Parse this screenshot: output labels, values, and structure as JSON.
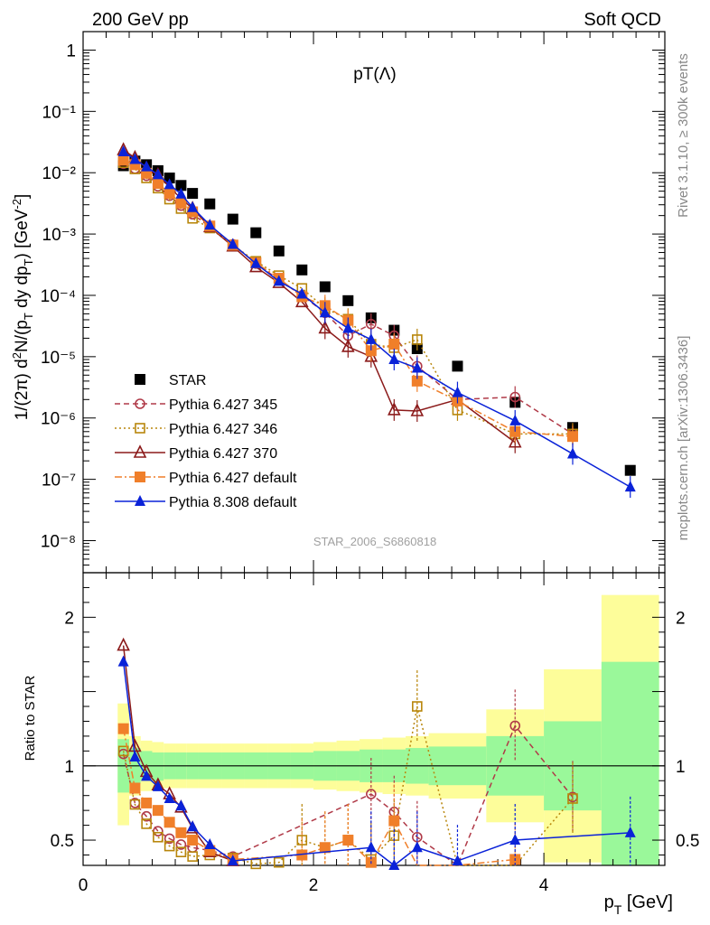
{
  "header": {
    "left": "200 GeV pp",
    "right": "Soft QCD"
  },
  "side_labels": {
    "upper": "Rivet 3.1.10, ≥ 300k events",
    "lower": "mcplots.cern.ch [arXiv:1306.3436]"
  },
  "chart_data": {
    "type": "scatter",
    "title": "pT(Λ)",
    "watermark": "STAR_2006_S6860818",
    "xlabel": "p_T [GeV]",
    "xlim": [
      0,
      5.05
    ],
    "x_ticks": [
      "0",
      "2",
      "4"
    ],
    "main_panel": {
      "ylabel": "1/(2π) d²N/(p_T dy dp_T) [GeV⁻²]",
      "yscale": "log",
      "ylim": [
        3e-09,
        2
      ],
      "y_ticks": [
        "10⁻⁸",
        "10⁻⁷",
        "10⁻⁶",
        "10⁻⁵",
        "10⁻⁴",
        "10⁻³",
        "10⁻²",
        "10⁻¹",
        "1"
      ],
      "legend_position": "lower-left",
      "series": [
        {
          "name": "STAR",
          "color": "#000000",
          "marker": "square-filled",
          "line": "none",
          "x": [
            0.35,
            0.45,
            0.55,
            0.65,
            0.75,
            0.85,
            0.95,
            1.1,
            1.3,
            1.5,
            1.7,
            1.9,
            2.1,
            2.3,
            2.5,
            2.7,
            2.9,
            3.25,
            3.75,
            4.25,
            4.75
          ],
          "y": [
            0.013,
            0.0155,
            0.0135,
            0.0108,
            0.0082,
            0.0062,
            0.0046,
            0.0031,
            0.00175,
            0.00105,
            0.00053,
            0.00026,
            0.000138,
            8.2e-05,
            4.3e-05,
            2.7e-05,
            1.35e-05,
            7e-06,
            1.8e-06,
            7e-07,
            1.4e-07
          ]
        },
        {
          "name": "Pythia 6.427 345",
          "color": "#b03a48",
          "marker": "circle-open",
          "line": "dashed",
          "x": [
            0.35,
            0.45,
            0.55,
            0.65,
            0.75,
            0.85,
            0.95,
            1.1,
            1.3,
            1.5,
            1.7,
            1.9,
            2.1,
            2.3,
            2.5,
            2.7,
            2.9,
            3.25,
            3.75,
            4.25
          ],
          "y": [
            0.014,
            0.0116,
            0.0089,
            0.006,
            0.0042,
            0.0029,
            0.0021,
            0.00132,
            0.00068,
            0.00033,
            0.00018,
            0.0001,
            5.2e-05,
            2.2e-05,
            3.4e-05,
            2.2e-05,
            7e-06,
            2e-06,
            2.2e-06,
            5.5e-07
          ]
        },
        {
          "name": "Pythia 6.427 346",
          "color": "#b8860b",
          "marker": "square-open",
          "line": "dotted",
          "x": [
            0.35,
            0.45,
            0.55,
            0.65,
            0.75,
            0.85,
            0.95,
            1.1,
            1.3,
            1.5,
            1.7,
            1.9,
            2.1,
            2.3,
            2.5,
            2.7,
            2.9,
            3.25,
            3.75,
            4.25
          ],
          "y": [
            0.0145,
            0.0115,
            0.0082,
            0.0056,
            0.0037,
            0.0026,
            0.0018,
            0.00125,
            0.00066,
            0.00036,
            0.00021,
            0.00013,
            6.2e-05,
            4.1e-05,
            1.6e-05,
            1.4e-05,
            1.9e-05,
            1.35e-06,
            5.5e-07,
            5.5e-07
          ]
        },
        {
          "name": "Pythia 6.427 370",
          "color": "#8b1a1a",
          "marker": "triangle-open",
          "line": "solid",
          "x": [
            0.35,
            0.45,
            0.55,
            0.65,
            0.75,
            0.85,
            0.95,
            1.1,
            1.3,
            1.5,
            1.7,
            1.9,
            2.1,
            2.3,
            2.5,
            2.7,
            2.9,
            3.25,
            3.75
          ],
          "y": [
            0.0235,
            0.0175,
            0.0118,
            0.0092,
            0.0058,
            0.0038,
            0.0026,
            0.0013,
            0.00063,
            0.00029,
            0.00016,
            7.8e-05,
            2.9e-05,
            1.45e-05,
            1e-05,
            1.35e-06,
            1.3e-06,
            2e-06,
            4e-07
          ]
        },
        {
          "name": "Pythia 6.427 default",
          "color": "#f07f2a",
          "marker": "square-filled",
          "line": "dashdot",
          "x": [
            0.35,
            0.45,
            0.55,
            0.65,
            0.75,
            0.85,
            0.95,
            1.1,
            1.3,
            1.5,
            1.7,
            1.9,
            2.1,
            2.3,
            2.5,
            2.7,
            2.9,
            3.25,
            3.75,
            4.25
          ],
          "y": [
            0.016,
            0.0135,
            0.0098,
            0.0067,
            0.0046,
            0.0032,
            0.0023,
            0.00135,
            0.00066,
            0.00034,
            0.00019,
            9.5e-05,
            6.8e-05,
            3.9e-05,
            1.25e-05,
            1.6e-05,
            4e-06,
            1.9e-06,
            6e-07,
            5e-07
          ]
        },
        {
          "name": "Pythia 8.308 default",
          "color": "#0a22d8",
          "marker": "triangle-filled",
          "line": "solid",
          "x": [
            0.35,
            0.45,
            0.55,
            0.65,
            0.75,
            0.85,
            0.95,
            1.1,
            1.3,
            1.5,
            1.7,
            1.9,
            2.1,
            2.3,
            2.5,
            2.7,
            2.9,
            3.25,
            3.75,
            4.25,
            4.75
          ],
          "y": [
            0.022,
            0.0165,
            0.0125,
            0.0093,
            0.0064,
            0.0045,
            0.0027,
            0.0014,
            0.00068,
            0.00033,
            0.00017,
            0.000105,
            5.2e-05,
            2.9e-05,
            1.9e-05,
            9e-06,
            6.5e-06,
            2.6e-06,
            9e-07,
            2.6e-07,
            7.5e-08
          ]
        }
      ]
    },
    "ratio_panel": {
      "ylabel": "Ratio to STAR",
      "ylim": [
        0.33,
        2.3
      ],
      "y_ticks": [
        "0.5",
        "1",
        "2"
      ],
      "reference_line": 1,
      "bands": [
        {
          "x0": 0.3,
          "x1": 0.4,
          "inner": [
            0.82,
            1.18
          ],
          "outer": [
            0.6,
            1.42
          ]
        },
        {
          "x0": 0.4,
          "x1": 0.5,
          "inner": [
            0.88,
            1.12
          ],
          "outer": [
            0.8,
            1.2
          ]
        },
        {
          "x0": 0.5,
          "x1": 0.6,
          "inner": [
            0.9,
            1.1
          ],
          "outer": [
            0.83,
            1.17
          ]
        },
        {
          "x0": 0.6,
          "x1": 0.7,
          "inner": [
            0.9,
            1.09
          ],
          "outer": [
            0.84,
            1.16
          ]
        },
        {
          "x0": 0.7,
          "x1": 0.8,
          "inner": [
            0.91,
            1.09
          ],
          "outer": [
            0.85,
            1.15
          ]
        },
        {
          "x0": 0.8,
          "x1": 0.9,
          "inner": [
            0.91,
            1.09
          ],
          "outer": [
            0.85,
            1.15
          ]
        },
        {
          "x0": 0.9,
          "x1": 1.0,
          "inner": [
            0.91,
            1.09
          ],
          "outer": [
            0.85,
            1.15
          ]
        },
        {
          "x0": 1.0,
          "x1": 1.2,
          "inner": [
            0.91,
            1.09
          ],
          "outer": [
            0.85,
            1.15
          ]
        },
        {
          "x0": 1.2,
          "x1": 1.4,
          "inner": [
            0.91,
            1.09
          ],
          "outer": [
            0.85,
            1.15
          ]
        },
        {
          "x0": 1.4,
          "x1": 1.6,
          "inner": [
            0.91,
            1.09
          ],
          "outer": [
            0.85,
            1.15
          ]
        },
        {
          "x0": 1.6,
          "x1": 1.8,
          "inner": [
            0.91,
            1.09
          ],
          "outer": [
            0.85,
            1.15
          ]
        },
        {
          "x0": 1.8,
          "x1": 2.0,
          "inner": [
            0.91,
            1.09
          ],
          "outer": [
            0.85,
            1.15
          ]
        },
        {
          "x0": 2.0,
          "x1": 2.2,
          "inner": [
            0.9,
            1.1
          ],
          "outer": [
            0.84,
            1.16
          ]
        },
        {
          "x0": 2.2,
          "x1": 2.4,
          "inner": [
            0.9,
            1.1
          ],
          "outer": [
            0.83,
            1.17
          ]
        },
        {
          "x0": 2.4,
          "x1": 2.6,
          "inner": [
            0.89,
            1.11
          ],
          "outer": [
            0.82,
            1.18
          ]
        },
        {
          "x0": 2.6,
          "x1": 2.8,
          "inner": [
            0.89,
            1.11
          ],
          "outer": [
            0.81,
            1.19
          ]
        },
        {
          "x0": 2.8,
          "x1": 3.0,
          "inner": [
            0.88,
            1.12
          ],
          "outer": [
            0.8,
            1.2
          ]
        },
        {
          "x0": 3.0,
          "x1": 3.5,
          "inner": [
            0.87,
            1.13
          ],
          "outer": [
            0.78,
            1.22
          ]
        },
        {
          "x0": 3.5,
          "x1": 4.0,
          "inner": [
            0.8,
            1.2
          ],
          "outer": [
            0.62,
            1.38
          ]
        },
        {
          "x0": 4.0,
          "x1": 4.5,
          "inner": [
            0.7,
            1.3
          ],
          "outer": [
            0.35,
            1.65
          ]
        },
        {
          "x0": 4.5,
          "x1": 5.0,
          "inner": [
            0.33,
            1.7
          ],
          "outer": [
            0.33,
            2.15
          ]
        }
      ],
      "series": [
        {
          "name": "Pythia 6.427 345",
          "x": [
            0.35,
            0.45,
            0.55,
            0.65,
            0.75,
            0.85,
            0.95,
            1.1,
            1.3,
            2.5,
            2.7,
            2.9,
            3.25,
            3.75,
            4.25
          ],
          "y": [
            1.08,
            0.75,
            0.66,
            0.56,
            0.51,
            0.47,
            0.45,
            0.43,
            0.39,
            0.81,
            0.69,
            0.52,
            0.3,
            1.27,
            0.79
          ]
        },
        {
          "name": "Pythia 6.427 346",
          "x": [
            0.35,
            0.45,
            0.55,
            0.65,
            0.75,
            0.85,
            0.95,
            1.1,
            1.3,
            1.5,
            1.7,
            1.9,
            2.1,
            2.3,
            2.5,
            2.7,
            2.9,
            3.25,
            3.75,
            4.25
          ],
          "y": [
            1.1,
            0.74,
            0.61,
            0.52,
            0.46,
            0.42,
            0.39,
            0.4,
            0.38,
            0.34,
            0.35,
            0.5,
            0.45,
            0.5,
            0.37,
            0.53,
            1.4,
            0.2,
            0.3,
            0.78
          ]
        },
        {
          "name": "Pythia 6.427 370",
          "x": [
            0.35,
            0.45,
            0.55,
            0.65,
            0.75,
            0.85,
            0.95,
            1.1,
            1.3
          ],
          "y": [
            1.81,
            1.13,
            0.96,
            0.87,
            0.81,
            0.72,
            0.58,
            0.42,
            0.36
          ]
        },
        {
          "name": "Pythia 6.427 default",
          "x": [
            0.35,
            0.45,
            0.55,
            0.65,
            0.75,
            0.85,
            0.95,
            1.1,
            1.3,
            1.9,
            2.1,
            2.3,
            2.5,
            2.7,
            2.9,
            3.25,
            3.75
          ],
          "y": [
            1.25,
            0.85,
            0.75,
            0.7,
            0.62,
            0.55,
            0.5,
            0.43,
            0.37,
            0.4,
            0.45,
            0.5,
            0.35,
            0.63,
            0.3,
            0.3,
            0.37
          ]
        },
        {
          "name": "Pythia 8.308 default",
          "x": [
            0.35,
            0.45,
            0.55,
            0.65,
            0.75,
            0.85,
            0.95,
            1.1,
            1.3,
            2.5,
            2.7,
            2.9,
            3.25,
            3.75,
            4.75
          ],
          "y": [
            1.7,
            1.06,
            0.93,
            0.86,
            0.78,
            0.73,
            0.59,
            0.47,
            0.36,
            0.45,
            0.33,
            0.45,
            0.36,
            0.5,
            0.55
          ]
        }
      ]
    }
  }
}
